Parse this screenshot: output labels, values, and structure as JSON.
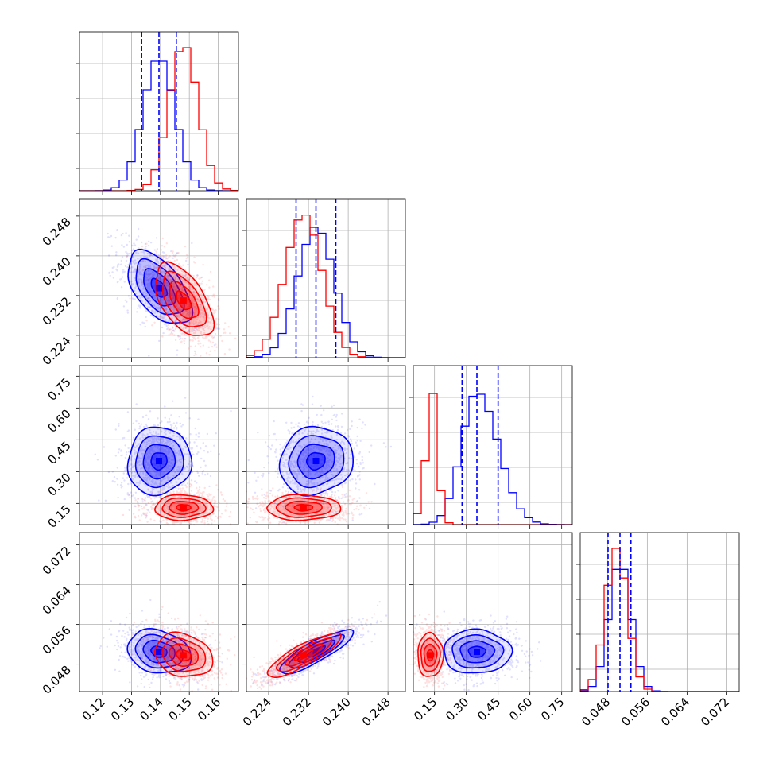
{
  "chart_data": {
    "type": "corner",
    "parameters": [
      {
        "range": [
          0.112,
          0.167
        ],
        "ticks": [
          "0.12",
          "0.13",
          "0.14",
          "0.15",
          "0.16"
        ]
      },
      {
        "range": [
          0.2195,
          0.2515
        ],
        "ticks": [
          "0.224",
          "0.232",
          "0.240",
          "0.248"
        ]
      },
      {
        "range": [
          0.05,
          0.8
        ],
        "ticks": [
          "0.15",
          "0.30",
          "0.45",
          "0.60",
          "0.75"
        ]
      },
      {
        "range": [
          0.0425,
          0.0745
        ],
        "ticks": [
          "0.048",
          "0.056",
          "0.064",
          "0.072"
        ]
      }
    ],
    "series": [
      {
        "color": "#0000ff",
        "means": [
          0.1395,
          0.2335,
          0.35,
          0.0505
        ],
        "sigmas": [
          0.0055,
          0.0037,
          0.08,
          0.0022
        ],
        "quantiles": [
          [
            0.1335,
            0.1395,
            0.1455
          ],
          [
            0.2295,
            0.2335,
            0.2375
          ],
          [
            0.28,
            0.35,
            0.45
          ],
          [
            0.0481,
            0.0505,
            0.0527
          ]
        ],
        "correlations": [
          [
            1,
            -0.55,
            0.05,
            -0.2
          ],
          [
            -0.55,
            1,
            0.1,
            0.85
          ],
          [
            0.05,
            0.1,
            1,
            0.0
          ],
          [
            -0.2,
            0.85,
            0.0,
            1
          ]
        ]
      },
      {
        "color": "#ff0000",
        "means": [
          0.148,
          0.231,
          0.13,
          0.0498
        ],
        "sigmas": [
          0.005,
          0.0037,
          0.03,
          0.0022
        ],
        "quantiles": null,
        "correlations": [
          [
            1,
            -0.55,
            0.0,
            -0.2
          ],
          [
            -0.55,
            1,
            0.0,
            0.85
          ],
          [
            0.0,
            0.0,
            1,
            0.0
          ],
          [
            -0.2,
            0.85,
            0.0,
            1
          ]
        ]
      }
    ],
    "contour_levels": [
      0.5,
      1.0,
      1.5,
      2.0
    ],
    "histogram_bins": 20,
    "grid": true,
    "dashed_lines": "16th, 50th, 84th percentiles of blue series"
  }
}
